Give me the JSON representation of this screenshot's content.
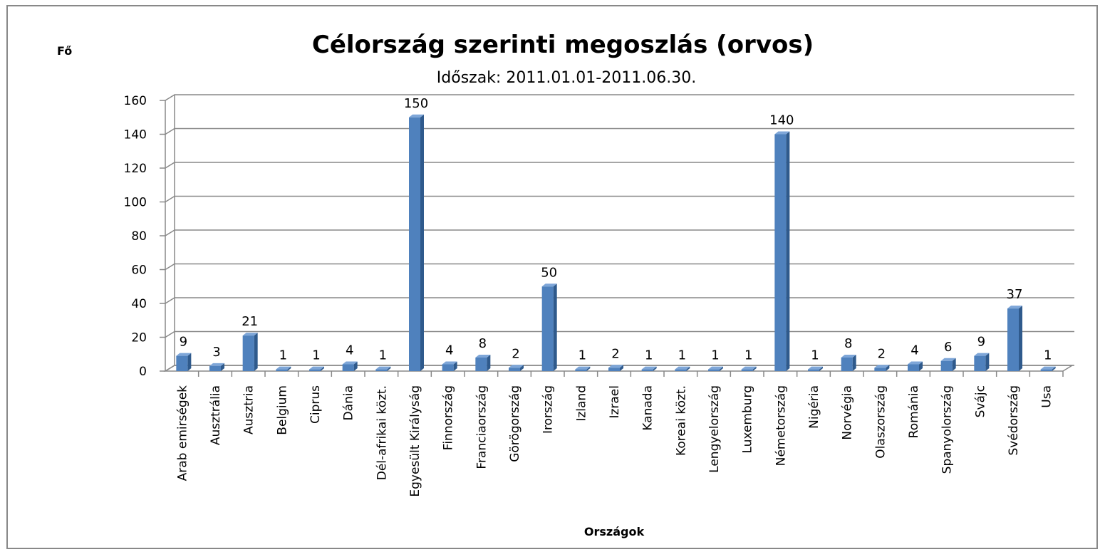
{
  "chart_data": {
    "type": "bar",
    "title": "Célország szerinti megoszlás (orvos)",
    "subtitle": "Időszak: 2011.01.01-2011.06.30.",
    "y_label": "Fő",
    "x_label": "Országok",
    "categories": [
      "Arab emirségek",
      "Ausztrália",
      "Ausztria",
      "Belgium",
      "Ciprus",
      "Dánia",
      "Dél-afrikai közt.",
      "Egyesült Királyság",
      "Finnország",
      "Franciaország",
      "Görögország",
      "Irország",
      "Izland",
      "Izrael",
      "Kanada",
      "Koreai közt.",
      "Lengyelország",
      "Luxemburg",
      "Németország",
      "Nigéria",
      "Norvégia",
      "Olaszország",
      "Románia",
      "Spanyolország",
      "Svájc",
      "Svédország",
      "Usa"
    ],
    "values": [
      9,
      3,
      21,
      1,
      1,
      4,
      1,
      150,
      4,
      8,
      2,
      50,
      1,
      2,
      1,
      1,
      1,
      1,
      140,
      1,
      8,
      2,
      4,
      6,
      9,
      37,
      1
    ],
    "color": "#4f81bd",
    "ylim": [
      0,
      160
    ],
    "yticks": [
      0,
      20,
      40,
      60,
      80,
      100,
      120,
      140,
      160
    ],
    "grid": true
  }
}
